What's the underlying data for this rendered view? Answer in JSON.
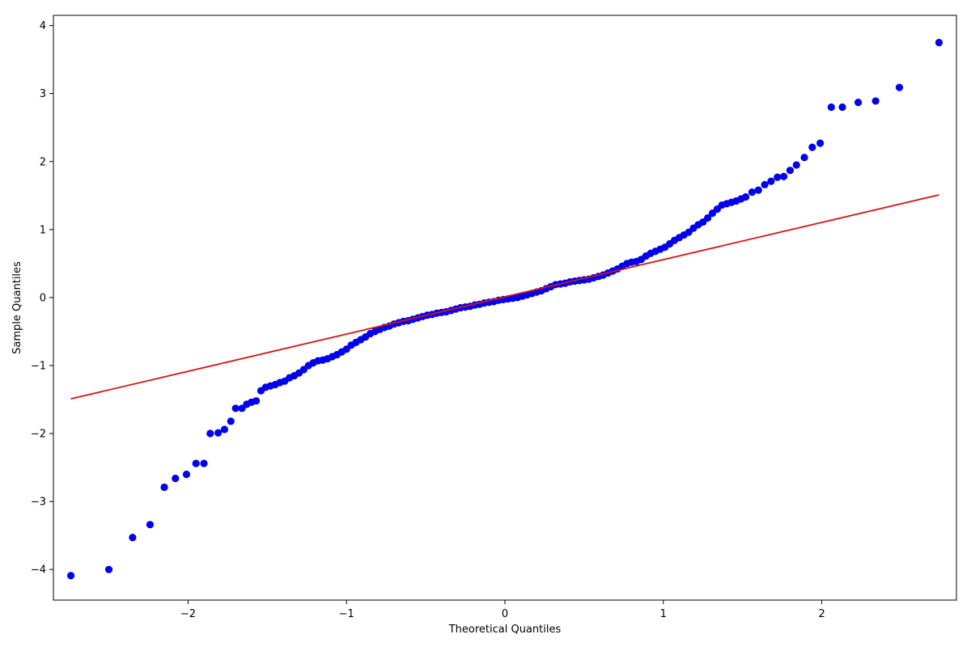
{
  "chart_data": {
    "type": "scatter",
    "xlabel": "Theoretical Quantiles",
    "ylabel": "Sample Quantiles",
    "xlim": [
      -2.85,
      2.85
    ],
    "ylim": [
      -4.45,
      4.15
    ],
    "xticks": [
      -2,
      -1,
      0,
      1,
      2
    ],
    "yticks": [
      -4,
      -3,
      -2,
      -1,
      0,
      1,
      2,
      3,
      4
    ],
    "xtick_labels": [
      "−2",
      "−1",
      "0",
      "1",
      "2"
    ],
    "ytick_labels": [
      "−4",
      "−3",
      "−2",
      "−1",
      "0",
      "1",
      "2",
      "3",
      "4"
    ],
    "grid": false,
    "marker_color": "#0000ee",
    "line_color": "#dd1111",
    "series": [
      {
        "values": [
          [
            -2.74,
            -4.09
          ],
          [
            -2.5,
            -4.0
          ],
          [
            -2.35,
            -3.53
          ],
          [
            -2.24,
            -3.34
          ],
          [
            -2.15,
            -2.79
          ],
          [
            -2.08,
            -2.66
          ],
          [
            -2.01,
            -2.6
          ],
          [
            -1.95,
            -2.44
          ],
          [
            -1.9,
            -2.44
          ],
          [
            -1.86,
            -2.0
          ],
          [
            -1.81,
            -1.99
          ],
          [
            -1.77,
            -1.94
          ],
          [
            -1.73,
            -1.82
          ],
          [
            -1.7,
            -1.63
          ],
          [
            -1.66,
            -1.63
          ],
          [
            -1.63,
            -1.57
          ],
          [
            -1.6,
            -1.54
          ],
          [
            -1.57,
            -1.52
          ],
          [
            -1.54,
            -1.37
          ],
          [
            -1.51,
            -1.32
          ],
          [
            -1.48,
            -1.3
          ],
          [
            -1.45,
            -1.28
          ],
          [
            -1.42,
            -1.25
          ],
          [
            -1.39,
            -1.23
          ],
          [
            -1.36,
            -1.18
          ],
          [
            -1.33,
            -1.15
          ],
          [
            -1.3,
            -1.11
          ],
          [
            -1.27,
            -1.06
          ],
          [
            -1.24,
            -1.0
          ],
          [
            -1.21,
            -0.96
          ],
          [
            -1.18,
            -0.93
          ],
          [
            -1.15,
            -0.92
          ],
          [
            -1.12,
            -0.9
          ],
          [
            -1.09,
            -0.87
          ],
          [
            -1.06,
            -0.84
          ],
          [
            -1.03,
            -0.8
          ],
          [
            -1.0,
            -0.76
          ],
          [
            -0.97,
            -0.7
          ],
          [
            -0.94,
            -0.66
          ],
          [
            -0.91,
            -0.62
          ],
          [
            -0.88,
            -0.58
          ],
          [
            -0.85,
            -0.53
          ],
          [
            -0.82,
            -0.5
          ],
          [
            -0.79,
            -0.47
          ],
          [
            -0.76,
            -0.44
          ],
          [
            -0.73,
            -0.42
          ],
          [
            -0.7,
            -0.39
          ],
          [
            -0.67,
            -0.37
          ],
          [
            -0.64,
            -0.35
          ],
          [
            -0.61,
            -0.34
          ],
          [
            -0.58,
            -0.32
          ],
          [
            -0.55,
            -0.3
          ],
          [
            -0.52,
            -0.28
          ],
          [
            -0.49,
            -0.26
          ],
          [
            -0.46,
            -0.25
          ],
          [
            -0.43,
            -0.23
          ],
          [
            -0.4,
            -0.22
          ],
          [
            -0.37,
            -0.21
          ],
          [
            -0.34,
            -0.19
          ],
          [
            -0.31,
            -0.17
          ],
          [
            -0.28,
            -0.15
          ],
          [
            -0.25,
            -0.14
          ],
          [
            -0.22,
            -0.13
          ],
          [
            -0.19,
            -0.11
          ],
          [
            -0.16,
            -0.1
          ],
          [
            -0.13,
            -0.08
          ],
          [
            -0.1,
            -0.07
          ],
          [
            -0.07,
            -0.06
          ],
          [
            -0.04,
            -0.04
          ],
          [
            -0.01,
            -0.03
          ],
          [
            0.02,
            -0.02
          ],
          [
            0.05,
            -0.01
          ],
          [
            0.08,
            0.0
          ],
          [
            0.11,
            0.02
          ],
          [
            0.14,
            0.04
          ],
          [
            0.17,
            0.06
          ],
          [
            0.2,
            0.08
          ],
          [
            0.23,
            0.1
          ],
          [
            0.26,
            0.13
          ],
          [
            0.29,
            0.16
          ],
          [
            0.32,
            0.19
          ],
          [
            0.35,
            0.2
          ],
          [
            0.38,
            0.21
          ],
          [
            0.41,
            0.23
          ],
          [
            0.44,
            0.24
          ],
          [
            0.47,
            0.25
          ],
          [
            0.5,
            0.26
          ],
          [
            0.53,
            0.27
          ],
          [
            0.56,
            0.29
          ],
          [
            0.59,
            0.31
          ],
          [
            0.62,
            0.33
          ],
          [
            0.65,
            0.36
          ],
          [
            0.68,
            0.39
          ],
          [
            0.71,
            0.42
          ],
          [
            0.74,
            0.46
          ],
          [
            0.77,
            0.5
          ],
          [
            0.8,
            0.52
          ],
          [
            0.83,
            0.53
          ],
          [
            0.86,
            0.56
          ],
          [
            0.89,
            0.61
          ],
          [
            0.92,
            0.65
          ],
          [
            0.95,
            0.68
          ],
          [
            0.98,
            0.71
          ],
          [
            1.01,
            0.74
          ],
          [
            1.04,
            0.79
          ],
          [
            1.07,
            0.84
          ],
          [
            1.1,
            0.88
          ],
          [
            1.13,
            0.92
          ],
          [
            1.16,
            0.96
          ],
          [
            1.19,
            1.02
          ],
          [
            1.22,
            1.07
          ],
          [
            1.25,
            1.11
          ],
          [
            1.28,
            1.17
          ],
          [
            1.31,
            1.24
          ],
          [
            1.34,
            1.3
          ],
          [
            1.37,
            1.36
          ],
          [
            1.4,
            1.38
          ],
          [
            1.43,
            1.4
          ],
          [
            1.46,
            1.42
          ],
          [
            1.49,
            1.45
          ],
          [
            1.52,
            1.48
          ],
          [
            1.56,
            1.55
          ],
          [
            1.6,
            1.58
          ],
          [
            1.64,
            1.66
          ],
          [
            1.68,
            1.71
          ],
          [
            1.72,
            1.77
          ],
          [
            1.76,
            1.78
          ],
          [
            1.8,
            1.87
          ],
          [
            1.84,
            1.95
          ],
          [
            1.89,
            2.06
          ],
          [
            1.94,
            2.21
          ],
          [
            1.99,
            2.27
          ],
          [
            2.06,
            2.8
          ],
          [
            2.13,
            2.8
          ],
          [
            2.23,
            2.87
          ],
          [
            2.34,
            2.89
          ],
          [
            2.49,
            3.09
          ],
          [
            2.74,
            3.75
          ]
        ]
      }
    ],
    "reference_line": [
      [
        -2.74,
        -1.49
      ],
      [
        2.74,
        1.51
      ]
    ]
  }
}
